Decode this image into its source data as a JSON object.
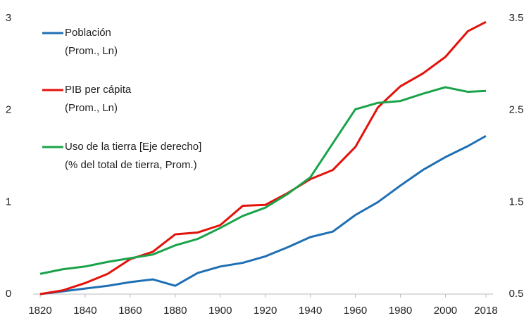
{
  "chart_data": {
    "type": "line",
    "x": [
      1820,
      1830,
      1840,
      1850,
      1860,
      1870,
      1880,
      1890,
      1900,
      1910,
      1920,
      1930,
      1940,
      1950,
      1960,
      1970,
      1980,
      1990,
      2000,
      2010,
      2018
    ],
    "xlim": [
      1820,
      2018
    ],
    "xticks": [
      1820,
      1840,
      1860,
      1880,
      1900,
      1920,
      1940,
      1960,
      1980,
      2000,
      2018
    ],
    "ylim": [
      0,
      3
    ],
    "yticks": [
      0,
      1,
      2,
      3
    ],
    "y2lim": [
      0.5,
      3.5
    ],
    "y2ticks": [
      0.5,
      1.5,
      2.5,
      3.5
    ],
    "series": [
      {
        "name": "Población",
        "name_note": "(Prom., Ln)",
        "color": "#1f6fb4",
        "values": [
          0,
          0.03,
          0.06,
          0.09,
          0.13,
          0.16,
          0.09,
          0.23,
          0.3,
          0.34,
          0.41,
          0.51,
          0.62,
          0.68,
          0.86,
          1.0,
          1.18,
          1.35,
          1.49,
          1.61,
          1.72
        ]
      },
      {
        "name": "PIB per cápita",
        "name_note": "(Prom., Ln)",
        "color": "#e3120b",
        "values": [
          0,
          0.04,
          0.12,
          0.22,
          0.38,
          0.46,
          0.65,
          0.67,
          0.75,
          0.96,
          0.97,
          1.1,
          1.25,
          1.35,
          1.6,
          2.03,
          2.26,
          2.4,
          2.58,
          2.86,
          2.96
        ]
      },
      {
        "name": "Uso de la tierra [Eje derecho]",
        "name_note": "(% del total de tierra, Prom.)",
        "color": "#1aa34a",
        "axis": "y2",
        "values": [
          0.72,
          0.77,
          0.8,
          0.85,
          0.89,
          0.93,
          1.03,
          1.1,
          1.22,
          1.35,
          1.44,
          1.59,
          1.77,
          2.14,
          2.51,
          2.58,
          2.6,
          2.68,
          2.75,
          2.7,
          2.71
        ]
      }
    ]
  }
}
